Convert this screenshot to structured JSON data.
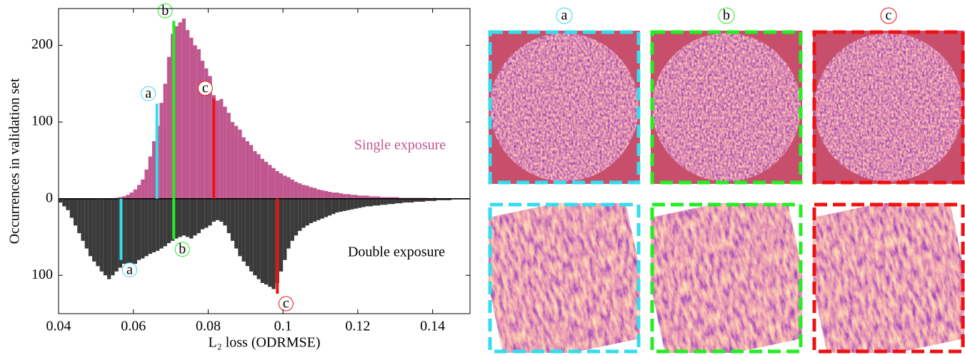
{
  "chart_data": {
    "type": "mirrored_histogram",
    "y_label": "Occurrences in validation set",
    "x_label": "L₂ loss (ODRMSE)",
    "xlim": [
      0.04,
      0.15
    ],
    "xticks": [
      0.04,
      0.06,
      0.08,
      0.1,
      0.12,
      0.14
    ],
    "ylim": [
      -150,
      248
    ],
    "yticks": [
      {
        "value": -100,
        "label": "100"
      },
      0,
      100,
      200
    ],
    "bins": [
      0.04,
      0.041,
      0.042,
      0.043,
      0.044,
      0.045,
      0.046,
      0.047,
      0.048,
      0.049,
      0.05,
      0.051,
      0.052,
      0.053,
      0.054,
      0.055,
      0.056,
      0.057,
      0.058,
      0.059,
      0.06,
      0.061,
      0.062,
      0.063,
      0.064,
      0.065,
      0.066,
      0.067,
      0.068,
      0.069,
      0.07,
      0.071,
      0.072,
      0.073,
      0.074,
      0.075,
      0.076,
      0.077,
      0.078,
      0.079,
      0.08,
      0.081,
      0.082,
      0.083,
      0.084,
      0.085,
      0.086,
      0.087,
      0.088,
      0.089,
      0.09,
      0.091,
      0.092,
      0.093,
      0.094,
      0.095,
      0.096,
      0.097,
      0.098,
      0.099,
      0.1,
      0.101,
      0.102,
      0.103,
      0.104,
      0.105,
      0.106,
      0.107,
      0.108,
      0.109,
      0.11,
      0.111,
      0.112,
      0.113,
      0.114,
      0.115,
      0.116,
      0.117,
      0.118,
      0.119,
      0.12,
      0.121,
      0.122,
      0.123,
      0.124,
      0.125,
      0.126,
      0.127,
      0.128,
      0.129,
      0.13,
      0.131,
      0.132,
      0.133,
      0.134,
      0.135,
      0.136,
      0.137,
      0.138,
      0.139,
      0.14,
      0.141,
      0.142,
      0.143,
      0.144,
      0.145,
      0.146,
      0.147,
      0.148,
      0.149,
      0.15
    ],
    "series": [
      {
        "name": "Single exposure",
        "color": "#c0578f",
        "values": [
          0,
          0,
          0,
          0,
          0,
          0,
          0,
          0,
          0,
          0,
          0,
          0,
          0,
          0,
          0,
          1,
          2,
          3,
          5,
          8,
          12,
          18,
          25,
          38,
          55,
          75,
          95,
          125,
          150,
          185,
          215,
          225,
          230,
          235,
          220,
          210,
          200,
          195,
          180,
          170,
          160,
          135,
          128,
          130,
          120,
          112,
          100,
          95,
          90,
          80,
          75,
          70,
          62,
          58,
          52,
          48,
          44,
          40,
          36,
          33,
          30,
          28,
          25,
          22,
          20,
          18,
          17,
          15,
          14,
          12,
          11,
          10,
          9,
          8,
          8,
          7,
          6,
          6,
          5,
          5,
          4,
          4,
          4,
          3,
          3,
          3,
          2,
          2,
          2,
          2,
          2,
          1,
          1,
          1,
          1,
          1,
          1,
          1,
          1,
          0,
          1,
          0,
          0,
          0,
          0,
          0,
          0,
          0,
          0,
          0
        ]
      },
      {
        "name": "Double exposure",
        "color": "#3a3a3a",
        "values": [
          -5,
          -10,
          -15,
          -25,
          -35,
          -45,
          -55,
          -65,
          -75,
          -82,
          -88,
          -95,
          -100,
          -105,
          -100,
          -95,
          -90,
          -85,
          -92,
          -88,
          -85,
          -80,
          -78,
          -75,
          -72,
          -70,
          -68,
          -65,
          -62,
          -58,
          -55,
          -52,
          -50,
          -48,
          -50,
          -52,
          -48,
          -45,
          -40,
          -38,
          -35,
          -30,
          -28,
          -30,
          -35,
          -45,
          -55,
          -65,
          -75,
          -82,
          -88,
          -95,
          -100,
          -105,
          -110,
          -112,
          -115,
          -118,
          -110,
          -95,
          -80,
          -65,
          -55,
          -48,
          -42,
          -38,
          -35,
          -32,
          -30,
          -28,
          -26,
          -24,
          -22,
          -20,
          -18,
          -17,
          -16,
          -15,
          -14,
          -13,
          -12,
          -11,
          -10,
          -10,
          -9,
          -9,
          -8,
          -8,
          -7,
          -7,
          -6,
          -6,
          -5,
          -5,
          -5,
          -4,
          -4,
          -4,
          -3,
          -3,
          -3,
          -2,
          -2,
          -2,
          -2,
          -1,
          -1,
          -1,
          -1,
          -1
        ]
      }
    ],
    "markers": [
      {
        "label": "a",
        "x": 0.0663,
        "value": 124,
        "color": "#33ddee"
      },
      {
        "label": "b",
        "x": 0.0708,
        "value": 232,
        "color": "#22ee22"
      },
      {
        "label": "c",
        "x": 0.0815,
        "value": 131,
        "color": "#ee1111"
      },
      {
        "label": "a",
        "x": 0.0567,
        "value": -80,
        "color": "#33ddee"
      },
      {
        "label": "b",
        "x": 0.0708,
        "value": -53,
        "color": "#22ee22"
      },
      {
        "label": "c",
        "x": 0.0985,
        "value": -124,
        "color": "#ee1111"
      }
    ]
  },
  "images": {
    "columns": [
      {
        "label": "a",
        "color": "#33ddee"
      },
      {
        "label": "b",
        "color": "#22ee22"
      },
      {
        "label": "c",
        "color": "#ee1111"
      }
    ]
  }
}
